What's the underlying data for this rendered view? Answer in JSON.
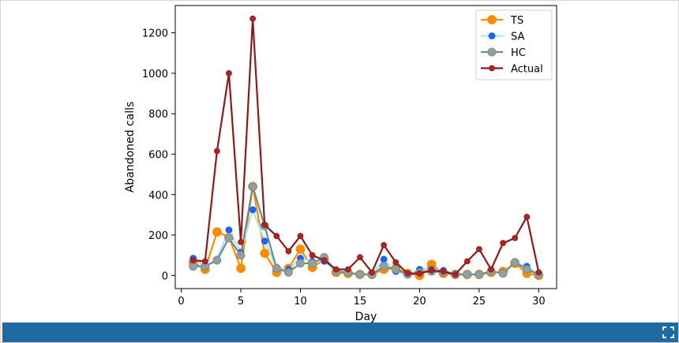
{
  "chart_data": {
    "type": "line",
    "xlabel": "Day",
    "ylabel": "Abandoned calls",
    "xlim": [
      -0.5,
      31.5
    ],
    "ylim": [
      -65,
      1335
    ],
    "xticks": [
      0,
      5,
      10,
      15,
      20,
      25,
      30
    ],
    "yticks": [
      0,
      200,
      400,
      600,
      800,
      1000,
      1200
    ],
    "legend_position": "top-right",
    "x": [
      1,
      2,
      3,
      4,
      5,
      6,
      7,
      8,
      9,
      10,
      11,
      12,
      13,
      14,
      15,
      16,
      17,
      18,
      19,
      20,
      21,
      22,
      23,
      24,
      25,
      26,
      27,
      28,
      29,
      30
    ],
    "series": [
      {
        "name": "TS",
        "color": "#ff8c00",
        "values": [
          65,
          30,
          215,
          190,
          35,
          440,
          110,
          15,
          35,
          130,
          40,
          80,
          15,
          10,
          5,
          5,
          30,
          35,
          10,
          0,
          55,
          10,
          5,
          5,
          5,
          15,
          20,
          60,
          10,
          0
        ]
      },
      {
        "name": "SA",
        "color": "#1f5fff",
        "line_color": "#a8e4f0",
        "values": [
          85,
          45,
          80,
          225,
          115,
          325,
          170,
          40,
          30,
          85,
          70,
          70,
          20,
          15,
          5,
          5,
          80,
          20,
          5,
          30,
          30,
          25,
          10,
          5,
          5,
          20,
          15,
          65,
          45,
          5
        ]
      },
      {
        "name": "HC",
        "color": "#939e9e",
        "line_color": "#6f8a8a",
        "values": [
          45,
          45,
          75,
          185,
          100,
          440,
          245,
          35,
          15,
          60,
          60,
          90,
          20,
          15,
          5,
          5,
          45,
          30,
          5,
          15,
          20,
          15,
          5,
          5,
          5,
          20,
          10,
          65,
          30,
          5
        ]
      },
      {
        "name": "Actual",
        "color": "#b22222",
        "line_color": "#8b1a1a",
        "values": [
          75,
          70,
          615,
          1000,
          165,
          1270,
          250,
          195,
          120,
          195,
          100,
          75,
          30,
          30,
          90,
          15,
          150,
          65,
          10,
          10,
          25,
          20,
          5,
          70,
          130,
          30,
          160,
          185,
          290,
          15
        ]
      }
    ]
  },
  "ui": {
    "expand_icon": "expand-icon",
    "bar_color": "#1f6aa0"
  }
}
